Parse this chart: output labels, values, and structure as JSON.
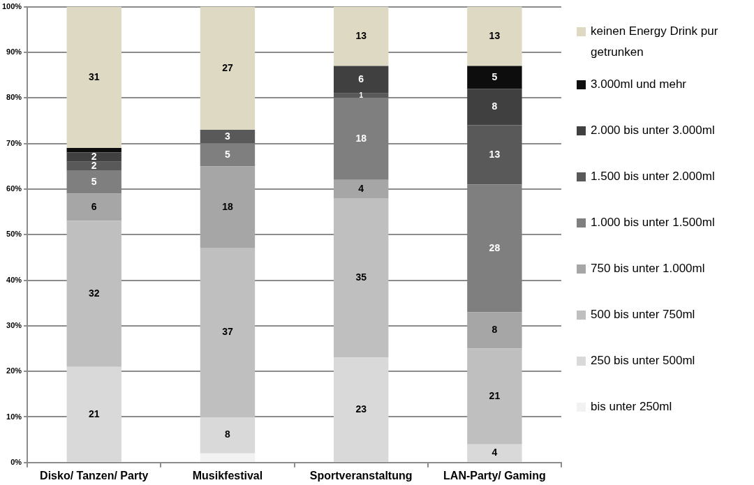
{
  "chart_data": {
    "type": "bar",
    "stacked": true,
    "categories": [
      "Disko/ Tanzen/ Party",
      "Musikfestival",
      "Sportveranstaltung",
      "LAN-Party/ Gaming"
    ],
    "series": [
      {
        "name": "bis unter 250ml",
        "color": "#f2f2f2",
        "values": [
          0,
          2,
          0,
          0
        ],
        "value_labels": [
          null,
          null,
          null,
          null
        ]
      },
      {
        "name": "250 bis unter 500ml",
        "color": "#d9d9d9",
        "values": [
          21,
          8,
          23,
          4
        ],
        "value_labels": [
          "21",
          "8",
          "23",
          "4"
        ]
      },
      {
        "name": "500 bis unter 750ml",
        "color": "#bfbfbf",
        "values": [
          32,
          37,
          35,
          21
        ],
        "value_labels": [
          "32",
          "37",
          "35",
          "21"
        ]
      },
      {
        "name": "750 bis unter 1.000ml",
        "color": "#a6a6a6",
        "values": [
          6,
          18,
          4,
          8
        ],
        "value_labels": [
          "6",
          "18",
          "4",
          "8"
        ]
      },
      {
        "name": "1.000 bis unter 1.500ml",
        "color": "#7f7f7f",
        "values": [
          5,
          5,
          18,
          28
        ],
        "value_labels": [
          "5",
          "5",
          "18",
          "28"
        ]
      },
      {
        "name": "1.500 bis unter 2.000ml",
        "color": "#595959",
        "values": [
          2,
          3,
          1,
          13
        ],
        "value_labels": [
          "2",
          "3",
          "1",
          "13"
        ]
      },
      {
        "name": "2.000 bis unter 3.000ml",
        "color": "#404040",
        "values": [
          2,
          0,
          6,
          8
        ],
        "value_labels": [
          "2",
          null,
          "6",
          "8"
        ]
      },
      {
        "name": "3.000ml und mehr",
        "color": "#0d0d0d",
        "values": [
          1,
          0,
          0,
          5
        ],
        "value_labels": [
          null,
          null,
          null,
          "5"
        ]
      },
      {
        "name": "keinen Energy Drink pur getrunken",
        "color": "#ddd9c3",
        "values": [
          31,
          27,
          13,
          13
        ],
        "value_labels": [
          "31",
          "27",
          "13",
          "13"
        ]
      }
    ],
    "ylim": [
      0,
      100
    ],
    "yticks": [
      {
        "value": 0,
        "label": "0%"
      },
      {
        "value": 10,
        "label": "10%"
      },
      {
        "value": 20,
        "label": "20%"
      },
      {
        "value": 30,
        "label": "30%"
      },
      {
        "value": 40,
        "label": "40%"
      },
      {
        "value": 50,
        "label": "50%"
      },
      {
        "value": 60,
        "label": "60%"
      },
      {
        "value": 70,
        "label": "70%"
      },
      {
        "value": 80,
        "label": "80%"
      },
      {
        "value": 90,
        "label": "90%"
      },
      {
        "value": 100,
        "label": "100%"
      }
    ],
    "grid": "y",
    "legend": "right"
  }
}
